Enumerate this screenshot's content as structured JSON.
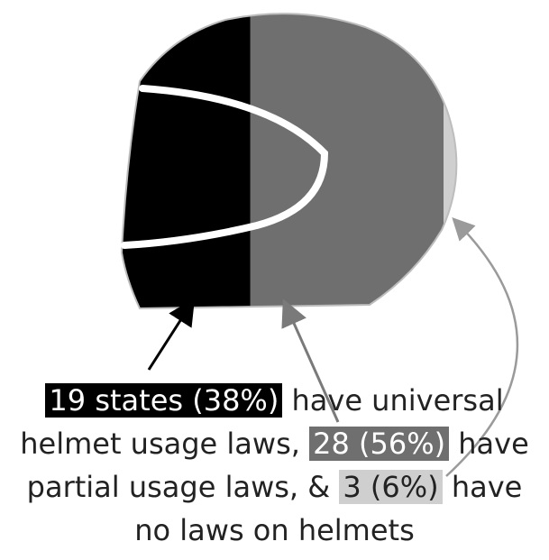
{
  "chart_data": {
    "type": "bar",
    "categories": [
      "universal helmet usage laws",
      "partial usage laws",
      "no laws on helmets"
    ],
    "values": [
      19,
      28,
      3
    ],
    "percentages": [
      38,
      56,
      6
    ],
    "title": "",
    "colors": [
      "#000000",
      "#6f6f6f",
      "#cfcfcf"
    ]
  },
  "caption": {
    "universal_highlight": "19 states (38%)",
    "universal_text": "have universal",
    "partial_prefix": "helmet usage laws,",
    "partial_highlight": "28 (56%)",
    "partial_suffix": "have",
    "none_prefix": "partial usage laws, &",
    "none_highlight": "3 (6%)",
    "none_suffix": "have",
    "last_line": "no laws on helmets"
  }
}
